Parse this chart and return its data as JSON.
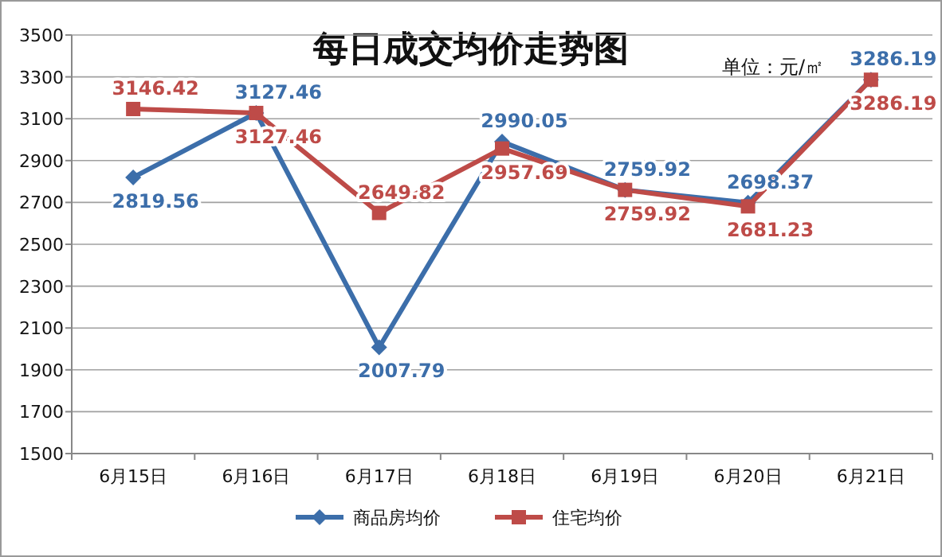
{
  "chart_data": {
    "type": "line",
    "title": "每日成交均价走势图",
    "annotations": [
      "单位：元/㎡"
    ],
    "categories": [
      "6月15日",
      "6月16日",
      "6月17日",
      "6月18日",
      "6月19日",
      "6月20日",
      "6月21日"
    ],
    "series": [
      {
        "name": "商品房均价",
        "color": "#3c6eaa",
        "marker": "diamond",
        "values": [
          2819.56,
          3127.46,
          2007.79,
          2990.05,
          2759.92,
          2698.37,
          3286.19
        ]
      },
      {
        "name": "住宅均价",
        "color": "#be4b48",
        "marker": "square",
        "values": [
          3146.42,
          3127.46,
          2649.82,
          2957.69,
          2759.92,
          2681.23,
          3286.19
        ]
      }
    ],
    "ylim": [
      1500,
      3500
    ],
    "yticks": [
      1500,
      1700,
      1900,
      2100,
      2300,
      2500,
      2700,
      2900,
      3100,
      3300,
      3500
    ],
    "grid": "y",
    "legend": "bottom",
    "data_labels": true,
    "line_style": "solid"
  }
}
